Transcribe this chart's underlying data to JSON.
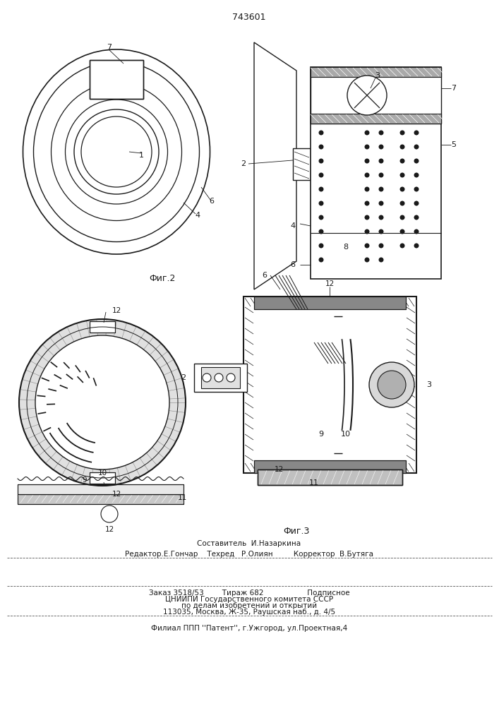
{
  "patent_number": "743601",
  "fig2_label": "Фиг.2",
  "fig3_label": "Фиг.3",
  "editor_line": "Редактор.Е.Гончар    Техред   Р.Олиян         Корректор  В.Бутяга",
  "composer_line": "Составитель  И.Назаркина",
  "order_line": "Заказ 3518/53        Тираж 682                   Подписное",
  "org_line1": "ЦНИИПИ Государственного комитета СССР",
  "org_line2": "по делам изобретений и открытий",
  "org_line3": "113035, Москва, Ж-35, Раушская наб., д. 4/5",
  "branch_line": "Филиал ППП ''Патент'', г.Ужгород, ул.Проектная,4",
  "bg_color": "#ffffff",
  "line_color": "#1a1a1a"
}
